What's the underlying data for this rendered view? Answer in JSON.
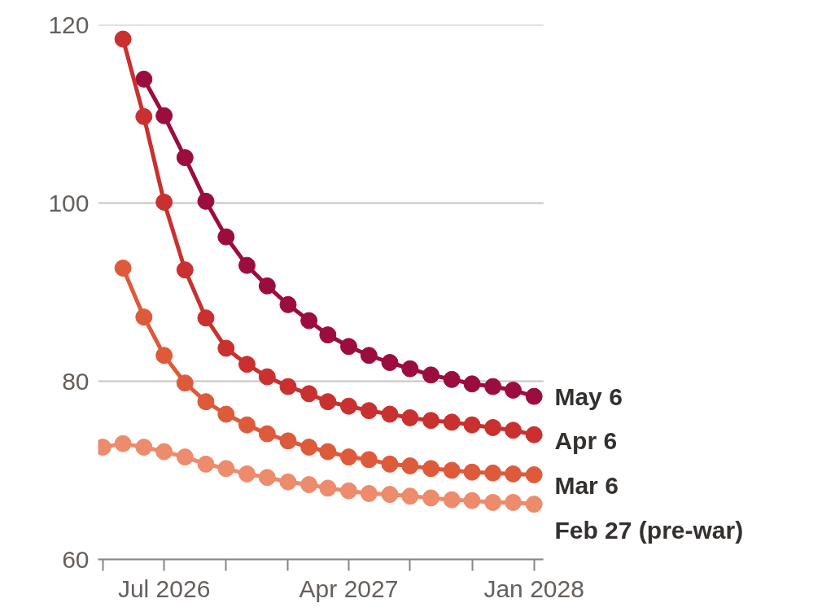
{
  "chart_data": {
    "type": "line",
    "marker": "circle",
    "grid": "y",
    "xlim": [
      "2026-03-25",
      "2028-01-15"
    ],
    "xticks": [
      {
        "value": "2026-04",
        "label": null
      },
      {
        "value": "2026-07",
        "label": "Jul 2026"
      },
      {
        "value": "2026-10",
        "label": null
      },
      {
        "value": "2027-01",
        "label": null
      },
      {
        "value": "2027-04",
        "label": "Apr 2027"
      },
      {
        "value": "2027-07",
        "label": null
      },
      {
        "value": "2027-10",
        "label": null
      },
      {
        "value": "2028-01",
        "label": "Jan 2028"
      }
    ],
    "ylim": [
      60,
      120
    ],
    "yticks": [
      60,
      80,
      100,
      120
    ],
    "series": [
      {
        "name": "May 6",
        "color": "#9b0d3f",
        "x": [
          "2026-06",
          "2026-07",
          "2026-08",
          "2026-09",
          "2026-10",
          "2026-11",
          "2026-12",
          "2027-01",
          "2027-02",
          "2027-03",
          "2027-04",
          "2027-05",
          "2027-06",
          "2027-07",
          "2027-08",
          "2027-09",
          "2027-10",
          "2027-11",
          "2027-12",
          "2028-01"
        ],
        "values": [
          113.9,
          109.8,
          105.1,
          100.2,
          96.2,
          93.0,
          90.7,
          88.6,
          86.8,
          85.2,
          83.9,
          82.9,
          82.1,
          81.4,
          80.7,
          80.2,
          79.7,
          79.4,
          79.0,
          78.3
        ]
      },
      {
        "name": "Apr 6",
        "color": "#c8312f",
        "x": [
          "2026-05",
          "2026-06",
          "2026-07",
          "2026-08",
          "2026-09",
          "2026-10",
          "2026-11",
          "2026-12",
          "2027-01",
          "2027-02",
          "2027-03",
          "2027-04",
          "2027-05",
          "2027-06",
          "2027-07",
          "2027-08",
          "2027-09",
          "2027-10",
          "2027-11",
          "2027-12",
          "2028-01"
        ],
        "values": [
          118.4,
          109.7,
          100.1,
          92.5,
          87.1,
          83.7,
          81.9,
          80.5,
          79.4,
          78.6,
          77.7,
          77.2,
          76.7,
          76.3,
          75.9,
          75.6,
          75.4,
          75.1,
          74.8,
          74.5,
          74.0
        ]
      },
      {
        "name": "Mar 6",
        "color": "#dd5a3b",
        "x": [
          "2026-05",
          "2026-06",
          "2026-07",
          "2026-08",
          "2026-09",
          "2026-10",
          "2026-11",
          "2026-12",
          "2027-01",
          "2027-02",
          "2027-03",
          "2027-04",
          "2027-05",
          "2027-06",
          "2027-07",
          "2027-08",
          "2027-09",
          "2027-10",
          "2027-11",
          "2027-12",
          "2028-01"
        ],
        "values": [
          92.7,
          87.2,
          82.9,
          79.8,
          77.7,
          76.3,
          75.1,
          74.1,
          73.3,
          72.6,
          72.1,
          71.5,
          71.2,
          70.7,
          70.5,
          70.2,
          70.0,
          69.8,
          69.7,
          69.6,
          69.5
        ]
      },
      {
        "name": "Feb 27 (pre-war)",
        "color": "#ec8c6c",
        "x": [
          "2026-04",
          "2026-05",
          "2026-06",
          "2026-07",
          "2026-08",
          "2026-09",
          "2026-10",
          "2026-11",
          "2026-12",
          "2027-01",
          "2027-02",
          "2027-03",
          "2027-04",
          "2027-05",
          "2027-06",
          "2027-07",
          "2027-08",
          "2027-09",
          "2027-10",
          "2027-11",
          "2027-12",
          "2028-01"
        ],
        "values": [
          72.6,
          73.0,
          72.6,
          72.1,
          71.5,
          70.7,
          70.2,
          69.6,
          69.2,
          68.7,
          68.4,
          68.0,
          67.7,
          67.4,
          67.3,
          67.1,
          66.9,
          66.7,
          66.6,
          66.4,
          66.4,
          66.2
        ]
      }
    ]
  }
}
